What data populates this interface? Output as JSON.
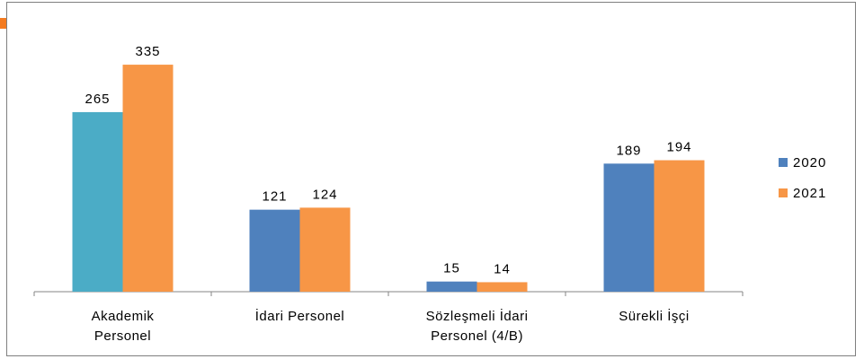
{
  "chart_data": {
    "type": "bar",
    "categories": [
      "Akademik\nPersonel",
      "İdari Personel",
      "Sözleşmeli İdari\nPersonel (4/B)",
      "Sürekli İşçi"
    ],
    "series": [
      {
        "name": "2020",
        "color": "#4f81bd",
        "colors": [
          "#4bacc6",
          "#4f81bd",
          "#4f81bd",
          "#4f81bd"
        ],
        "values": [
          265,
          121,
          15,
          189
        ]
      },
      {
        "name": "2021",
        "color": "#f79646",
        "values": [
          335,
          124,
          14,
          194
        ]
      }
    ],
    "legend": "right"
  }
}
